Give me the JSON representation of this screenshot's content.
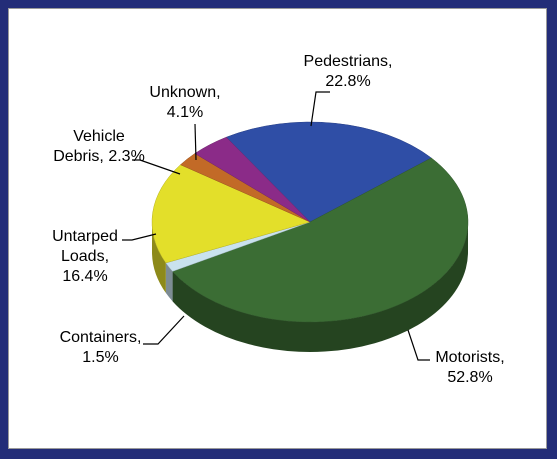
{
  "chart_data": {
    "type": "pie3d",
    "categories": [
      "Pedestrians,",
      "Motorists,",
      "Containers,",
      "Untarped Loads,",
      "Vehicle Debris,",
      "Unknown,"
    ],
    "values": [
      22.8,
      52.8,
      1.5,
      16.4,
      2.3,
      4.1
    ],
    "value_labels": [
      "22.8%",
      "52.8%",
      "1.5%",
      "16.4%",
      "2.3%",
      "4.1%"
    ],
    "colors": [
      "#2f4ea6",
      "#3b6d34",
      "#c9e2ee",
      "#e3df2a",
      "#c26a27",
      "#8b2b88"
    ]
  }
}
